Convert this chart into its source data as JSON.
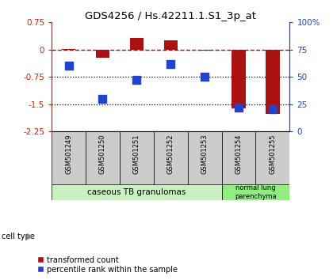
{
  "title": "GDS4256 / Hs.42211.1.S1_3p_at",
  "samples": [
    "GSM501249",
    "GSM501250",
    "GSM501251",
    "GSM501252",
    "GSM501253",
    "GSM501254",
    "GSM501255"
  ],
  "transformed_count": [
    0.02,
    -0.22,
    0.32,
    0.26,
    -0.02,
    -1.62,
    -1.78
  ],
  "percentile_rank": [
    60,
    30,
    47,
    62,
    50,
    22,
    20
  ],
  "ylim_left": [
    -2.25,
    0.75
  ],
  "ylim_right": [
    0,
    100
  ],
  "yticks_left": [
    0.75,
    0,
    -0.75,
    -1.5,
    -2.25
  ],
  "yticks_right": [
    100,
    75,
    50,
    25,
    0
  ],
  "cell_type_groups": [
    {
      "label": "caseous TB granulomas",
      "start": 0,
      "end": 4,
      "color": "#c8f0c0"
    },
    {
      "label": "normal lung\nparenchyma",
      "start": 5,
      "end": 6,
      "color": "#90ee80"
    }
  ],
  "bar_color": "#aa1111",
  "dot_color": "#2244cc",
  "left_axis_color": "#cc2200",
  "right_axis_color": "#2244bb",
  "bar_width": 0.4,
  "dot_size": 45,
  "sample_box_color": "#cccccc",
  "background_color": "#ffffff"
}
